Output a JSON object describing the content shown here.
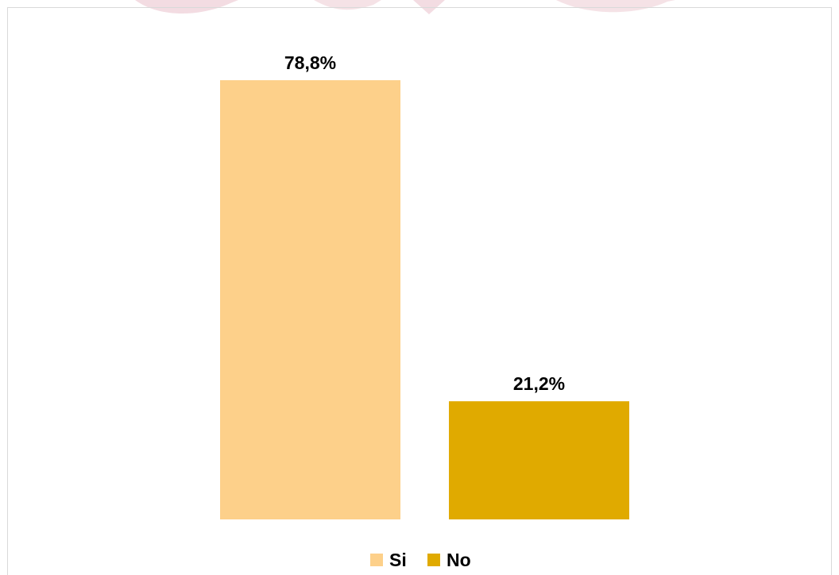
{
  "chart_data": {
    "type": "bar",
    "categories": [
      "Si",
      "No"
    ],
    "series": [
      {
        "name": "Si",
        "values": [
          78.8,
          null
        ],
        "color": "#fdd08a"
      },
      {
        "name": "No",
        "values": [
          null,
          21.2
        ],
        "color": "#e0aa00"
      }
    ],
    "values": [
      78.8,
      21.2
    ],
    "data_labels": [
      "78,8%",
      "21,2%"
    ],
    "title": "",
    "xlabel": "",
    "ylabel": "",
    "ylim": [
      0,
      100
    ],
    "grid": false,
    "legend": {
      "placement": "bottom",
      "entries": [
        {
          "label": "Si",
          "color": "#fdd08a"
        },
        {
          "label": "No",
          "color": "#e0aa00"
        }
      ]
    }
  },
  "colors": {
    "si": "#fdd08a",
    "no": "#e0aa00",
    "frame": "#d9d9d9",
    "watermark": "#f3dce2"
  }
}
